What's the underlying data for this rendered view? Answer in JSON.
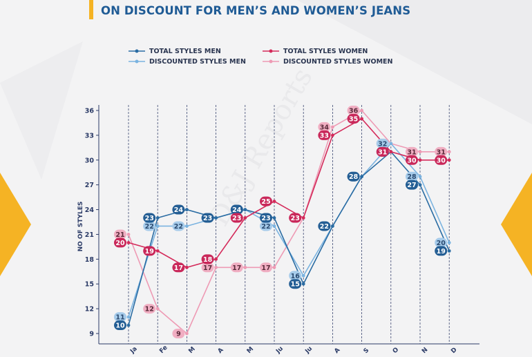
{
  "page": {
    "title": "ON DISCOUNT FOR MEN’S AND WOMEN’S JEANS",
    "watermark": "D&J Reports",
    "colors": {
      "accent_yellow": "#f5b324",
      "title_blue": "#1f5b95"
    }
  },
  "chart_data": {
    "type": "line",
    "ylabel": "NO OF STYLES",
    "xlabel": "",
    "ylim": [
      8,
      36.5
    ],
    "yticks": [
      9,
      12,
      15,
      18,
      21,
      24,
      27,
      30,
      33,
      36
    ],
    "categories": [
      "Ja",
      "Fe",
      "M",
      "A",
      "M",
      "Ju",
      "Ju",
      "A",
      "S",
      "O",
      "N",
      "D"
    ],
    "legend_placement": "top",
    "grid": "vertical dashed",
    "series": [
      {
        "name": "TOTAL STYLES MEN",
        "color": "#2a6ca3",
        "label_bg": "#245e94",
        "label_color": "#ffffff",
        "values": [
          10,
          23,
          24,
          23,
          24,
          23,
          15,
          22,
          28,
          31,
          27,
          19
        ]
      },
      {
        "name": "DISCOUNTED STYLES MEN",
        "color": "#7ab3e0",
        "label_bg": "#a6cbea",
        "label_color": "#2a4a70",
        "values": [
          11,
          22,
          22,
          23,
          24,
          22,
          16,
          22,
          28,
          32,
          28,
          20
        ]
      },
      {
        "name": "TOTAL STYLES WOMEN",
        "color": "#d42a5a",
        "label_bg": "#c9285a",
        "label_color": "#ffffff",
        "values": [
          20,
          19,
          17,
          18,
          23,
          25,
          23,
          33,
          35,
          31,
          30,
          30
        ]
      },
      {
        "name": "DISCOUNTED STYLES WOMEN",
        "color": "#ee9ab4",
        "label_bg": "#f0aec2",
        "label_color": "#5a2a3a",
        "values": [
          21,
          12,
          9,
          17,
          17,
          17,
          23,
          34,
          36,
          32,
          31,
          31
        ]
      }
    ]
  }
}
